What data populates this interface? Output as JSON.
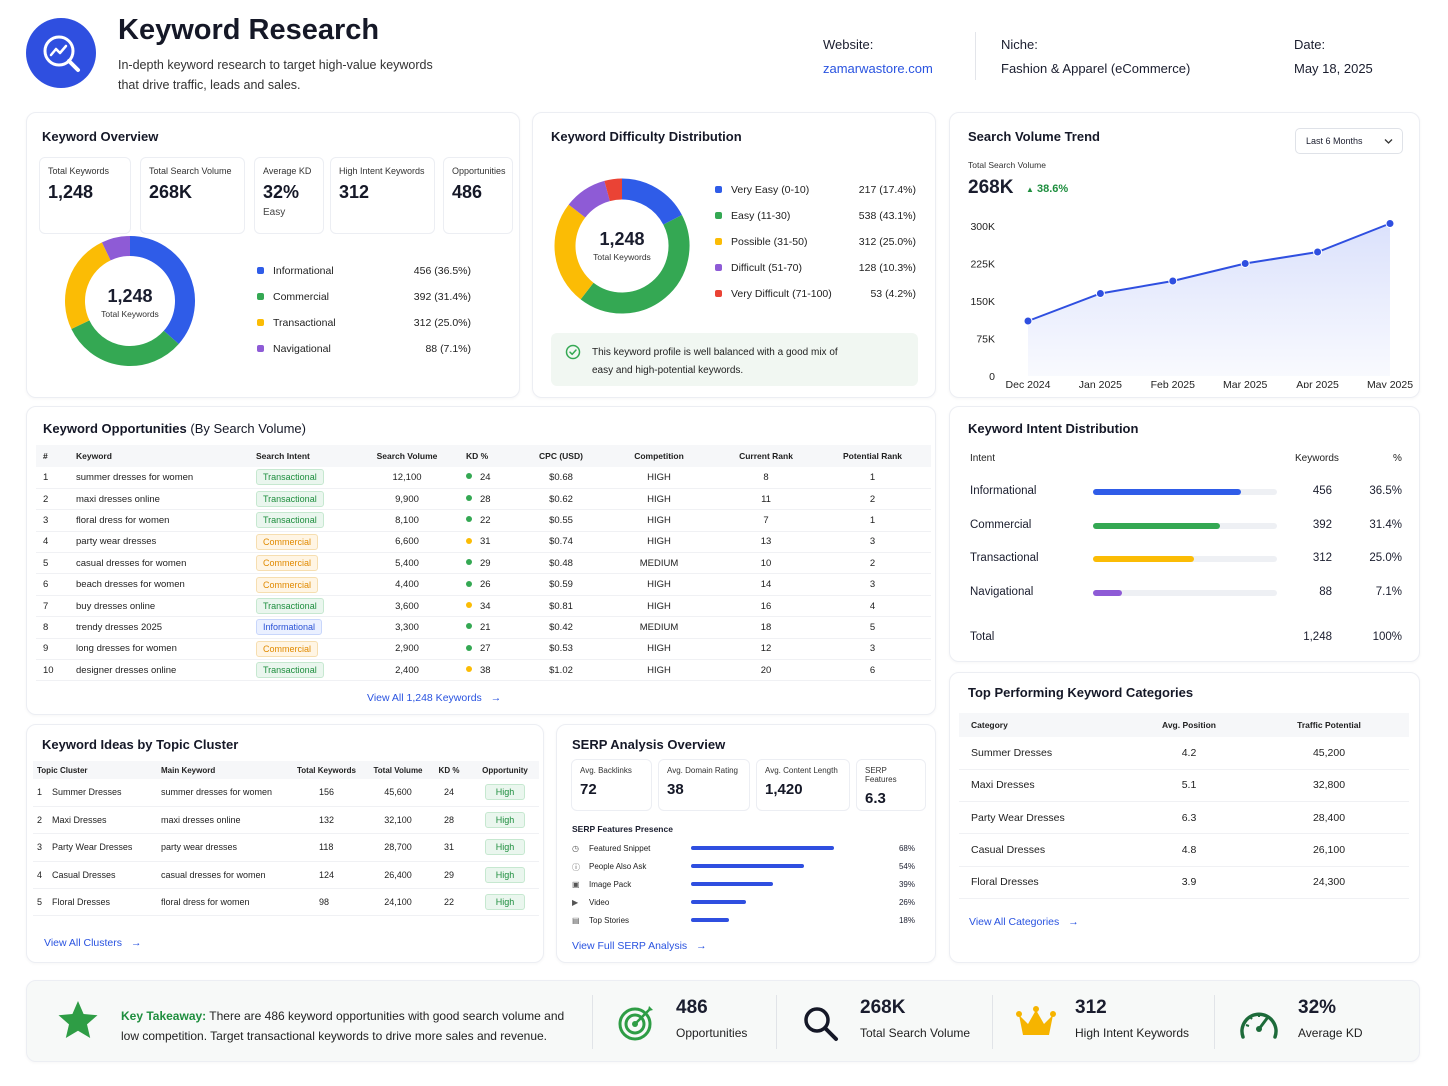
{
  "header": {
    "title": "Keyword Research",
    "subtitle_line1": "In-depth keyword research to target high-value keywords",
    "subtitle_line2": "that drive traffic, leads and sales.",
    "website_label": "Website:",
    "website_value": "zamarwastore.com",
    "niche_label": "Niche:",
    "niche_value": "Fashion & Apparel (eCommerce)",
    "date_label": "Date:",
    "date_value": "May 18, 2025"
  },
  "overview": {
    "title": "Keyword Overview",
    "stats": [
      {
        "label": "Total Keywords",
        "value": "1,248",
        "sub": ""
      },
      {
        "label": "Total Search Volume",
        "value": "268K",
        "sub": ""
      },
      {
        "label": "Average KD",
        "value": "32%",
        "sub": "Easy"
      },
      {
        "label": "High Intent Keywords",
        "value": "312",
        "sub": ""
      },
      {
        "label": "Opportunities",
        "value": "486",
        "sub": ""
      }
    ],
    "donut_center": "1,248",
    "donut_label": "Total Keywords",
    "legend": [
      {
        "name": "Informational",
        "value": "456 (36.5%)",
        "pct": 36.5,
        "color": "#2f5ce8"
      },
      {
        "name": "Commercial",
        "value": "392 (31.4%)",
        "pct": 31.4,
        "color": "#34a853"
      },
      {
        "name": "Transactional",
        "value": "312 (25.0%)",
        "pct": 25.0,
        "color": "#fbbc05"
      },
      {
        "name": "Navigational",
        "value": "88 (7.1%)",
        "pct": 7.1,
        "color": "#8e5bd6"
      }
    ]
  },
  "difficulty": {
    "title": "Keyword Difficulty Distribution",
    "donut_center": "1,248",
    "donut_label": "Total Keywords",
    "legend": [
      {
        "name": "Very Easy (0-10)",
        "value": "217 (17.4%)",
        "pct": 17.4,
        "color": "#2f5ce8"
      },
      {
        "name": "Easy (11-30)",
        "value": "538 (43.1%)",
        "pct": 43.1,
        "color": "#34a853"
      },
      {
        "name": "Possible (31-50)",
        "value": "312 (25.0%)",
        "pct": 25.0,
        "color": "#fbbc05"
      },
      {
        "name": "Difficult (51-70)",
        "value": "128 (10.3%)",
        "pct": 10.3,
        "color": "#8e5bd6"
      },
      {
        "name": "Very Difficult (71-100)",
        "value": "53 (4.2%)",
        "pct": 4.2,
        "color": "#ea4335"
      }
    ],
    "note_line1": "This keyword profile is well balanced with a good mix of",
    "note_line2": "easy and high-potential keywords."
  },
  "trend": {
    "title": "Search Volume Trend",
    "dropdown": "Last 6 Months",
    "total_label": "Total Search Volume",
    "total_value": "268K",
    "change": "38.6%"
  },
  "chart_data": {
    "type": "area",
    "x": [
      "Dec 2024",
      "Jan 2025",
      "Feb 2025",
      "Mar 2025",
      "Apr 2025",
      "May 2025"
    ],
    "series": [
      {
        "values": [
          110000,
          165000,
          190000,
          225000,
          248000,
          305000
        ]
      }
    ],
    "ylim": [
      0,
      300000
    ],
    "yticks": [
      "0",
      "75K",
      "150K",
      "225K",
      "300K"
    ],
    "grid": false
  },
  "opportunities": {
    "title": "Keyword Opportunities",
    "title_suffix": "(By Search Volume)",
    "headers": [
      "#",
      "Keyword",
      "Search Intent",
      "Search Volume",
      "KD %",
      "CPC (USD)",
      "Competition",
      "Current Rank",
      "Potential Rank"
    ],
    "rows": [
      {
        "n": "1",
        "kw": "summer dresses for women",
        "intent": "Transactional",
        "vol": "12,100",
        "kd": "24",
        "cpc": "$0.68",
        "comp": "HIGH",
        "cur": "8",
        "pot": "1"
      },
      {
        "n": "2",
        "kw": "maxi dresses online",
        "intent": "Transactional",
        "vol": "9,900",
        "kd": "28",
        "cpc": "$0.62",
        "comp": "HIGH",
        "cur": "11",
        "pot": "2"
      },
      {
        "n": "3",
        "kw": "floral dress for women",
        "intent": "Transactional",
        "vol": "8,100",
        "kd": "22",
        "cpc": "$0.55",
        "comp": "HIGH",
        "cur": "7",
        "pot": "1"
      },
      {
        "n": "4",
        "kw": "party wear dresses",
        "intent": "Commercial",
        "vol": "6,600",
        "kd": "31",
        "cpc": "$0.74",
        "comp": "HIGH",
        "cur": "13",
        "pot": "3"
      },
      {
        "n": "5",
        "kw": "casual dresses for women",
        "intent": "Commercial",
        "vol": "5,400",
        "kd": "29",
        "cpc": "$0.48",
        "comp": "MEDIUM",
        "cur": "10",
        "pot": "2"
      },
      {
        "n": "6",
        "kw": "beach dresses for women",
        "intent": "Commercial",
        "vol": "4,400",
        "kd": "26",
        "cpc": "$0.59",
        "comp": "HIGH",
        "cur": "14",
        "pot": "3"
      },
      {
        "n": "7",
        "kw": "buy dresses online",
        "intent": "Transactional",
        "vol": "3,600",
        "kd": "34",
        "cpc": "$0.81",
        "comp": "HIGH",
        "cur": "16",
        "pot": "4"
      },
      {
        "n": "8",
        "kw": "trendy dresses 2025",
        "intent": "Informational",
        "vol": "3,300",
        "kd": "21",
        "cpc": "$0.42",
        "comp": "MEDIUM",
        "cur": "18",
        "pot": "5"
      },
      {
        "n": "9",
        "kw": "long dresses for women",
        "intent": "Commercial",
        "vol": "2,900",
        "kd": "27",
        "cpc": "$0.53",
        "comp": "HIGH",
        "cur": "12",
        "pot": "3"
      },
      {
        "n": "10",
        "kw": "designer dresses online",
        "intent": "Transactional",
        "vol": "2,400",
        "kd": "38",
        "cpc": "$1.02",
        "comp": "HIGH",
        "cur": "20",
        "pot": "6"
      }
    ],
    "view_all": "View All 1,248 Keywords"
  },
  "intent": {
    "title": "Keyword Intent Distribution",
    "headers": [
      "Intent",
      "Keywords",
      "%"
    ],
    "rows": [
      {
        "name": "Informational",
        "kw": "456",
        "pct": "36.5%",
        "fill": 36.5,
        "color": "#2f5ce8"
      },
      {
        "name": "Commercial",
        "kw": "392",
        "pct": "31.4%",
        "fill": 31.4,
        "color": "#34a853"
      },
      {
        "name": "Transactional",
        "kw": "312",
        "pct": "25.0%",
        "fill": 25.0,
        "color": "#fbbc05"
      },
      {
        "name": "Navigational",
        "kw": "88",
        "pct": "7.1%",
        "fill": 7.1,
        "color": "#8e5bd6"
      }
    ],
    "total_label": "Total",
    "total_kw": "1,248",
    "total_pct": "100%"
  },
  "clusters": {
    "title": "Keyword Ideas by Topic Cluster",
    "headers": [
      "Topic Cluster",
      "Main Keyword",
      "Total Keywords",
      "Total Volume",
      "KD %",
      "Opportunity"
    ],
    "rows": [
      {
        "n": "1",
        "cluster": "Summer Dresses",
        "kw": "summer dresses for women",
        "total": "156",
        "vol": "45,600",
        "kd": "24",
        "opp": "High"
      },
      {
        "n": "2",
        "cluster": "Maxi Dresses",
        "kw": "maxi dresses online",
        "total": "132",
        "vol": "32,100",
        "kd": "28",
        "opp": "High"
      },
      {
        "n": "3",
        "cluster": "Party Wear Dresses",
        "kw": "party wear dresses",
        "total": "118",
        "vol": "28,700",
        "kd": "31",
        "opp": "High"
      },
      {
        "n": "4",
        "cluster": "Casual Dresses",
        "kw": "casual dresses for women",
        "total": "124",
        "vol": "26,400",
        "kd": "29",
        "opp": "High"
      },
      {
        "n": "5",
        "cluster": "Floral Dresses",
        "kw": "floral dress for women",
        "total": "98",
        "vol": "24,100",
        "kd": "22",
        "opp": "High"
      }
    ],
    "view_all": "View All Clusters"
  },
  "serp": {
    "title": "SERP Analysis Overview",
    "stats": [
      {
        "label": "Avg. Backlinks",
        "value": "72"
      },
      {
        "label": "Avg. Domain Rating",
        "value": "38"
      },
      {
        "label": "Avg. Content Length",
        "value": "1,420"
      },
      {
        "label": "SERP Features",
        "value": "6.3"
      }
    ],
    "features_title": "SERP Features Presence",
    "features": [
      {
        "name": "Featured Snippet",
        "pct": "68%",
        "fill": 68
      },
      {
        "name": "People Also Ask",
        "pct": "54%",
        "fill": 54
      },
      {
        "name": "Image Pack",
        "pct": "39%",
        "fill": 39
      },
      {
        "name": "Video",
        "pct": "26%",
        "fill": 26
      },
      {
        "name": "Top Stories",
        "pct": "18%",
        "fill": 18
      }
    ],
    "view_all": "View Full SERP Analysis"
  },
  "categories": {
    "title": "Top Performing Keyword Categories",
    "headers": [
      "Category",
      "Avg. Position",
      "Traffic Potential"
    ],
    "rows": [
      {
        "name": "Summer Dresses",
        "pos": "4.2",
        "traffic": "45,200"
      },
      {
        "name": "Maxi Dresses",
        "pos": "5.1",
        "traffic": "32,800"
      },
      {
        "name": "Party Wear Dresses",
        "pos": "6.3",
        "traffic": "28,400"
      },
      {
        "name": "Casual Dresses",
        "pos": "4.8",
        "traffic": "26,100"
      },
      {
        "name": "Floral Dresses",
        "pos": "3.9",
        "traffic": "24,300"
      }
    ],
    "view_all": "View All Categories"
  },
  "takeaway": {
    "label": "Key Takeaway:",
    "text1": "There are 486 keyword opportunities with good search volume and",
    "text2": "low competition. Target transactional keywords to drive more sales and revenue.",
    "kpis": [
      {
        "value": "486",
        "label": "Opportunities",
        "icon": "target-icon"
      },
      {
        "value": "268K",
        "label": "Total Search Volume",
        "icon": "search-icon"
      },
      {
        "value": "312",
        "label": "High Intent Keywords",
        "icon": "crown-icon"
      },
      {
        "value": "32%",
        "label": "Average KD",
        "icon": "gauge-icon"
      }
    ]
  },
  "colors": {
    "accent": "#2953e0",
    "green": "#34a853",
    "amber": "#fbbc05",
    "purple": "#8e5bd6",
    "red": "#ea4335"
  }
}
